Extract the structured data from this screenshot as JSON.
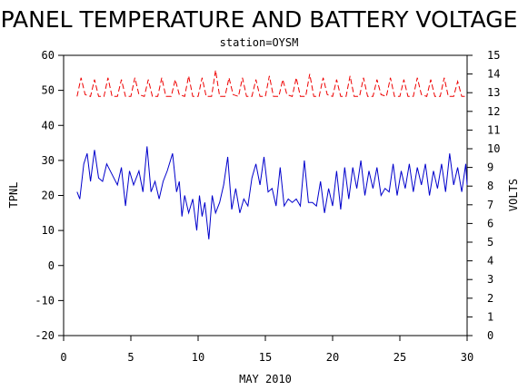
{
  "chart_data": {
    "type": "line",
    "title": "PANEL TEMPERATURE AND BATTERY VOLTAGE",
    "subtitle": "station=OYSM",
    "xlabel": "MAY 2010",
    "ylabel_left": "TPNL",
    "ylabel_right": "VOLTS",
    "xlim": [
      0,
      30
    ],
    "ylim_left": [
      -20,
      60
    ],
    "ylim_right": [
      0,
      15
    ],
    "x_ticks": [
      "0",
      "5",
      "10",
      "15",
      "20",
      "25",
      "30"
    ],
    "y_ticks_left": [
      "-20",
      "-10",
      "0",
      "10",
      "20",
      "30",
      "40",
      "50",
      "60"
    ],
    "y_ticks_right": [
      "0",
      "1",
      "2",
      "3",
      "4",
      "5",
      "6",
      "7",
      "8",
      "9",
      "10",
      "11",
      "12",
      "13",
      "14",
      "15"
    ],
    "grid": false,
    "series": [
      {
        "axis": "left",
        "color": "#0000cc",
        "dash": "solid",
        "x": [
          1.0,
          1.2,
          1.5,
          1.75,
          2.0,
          2.3,
          2.6,
          2.9,
          3.2,
          3.6,
          4.0,
          4.3,
          4.6,
          4.9,
          5.2,
          5.6,
          5.9,
          6.2,
          6.5,
          6.8,
          7.1,
          7.4,
          7.7,
          8.1,
          8.4,
          8.6,
          8.8,
          9.0,
          9.3,
          9.6,
          9.9,
          10.1,
          10.3,
          10.5,
          10.8,
          11.05,
          11.3,
          11.6,
          11.9,
          12.2,
          12.5,
          12.8,
          13.1,
          13.4,
          13.7,
          14.0,
          14.3,
          14.6,
          14.9,
          15.2,
          15.5,
          15.8,
          16.1,
          16.4,
          16.7,
          17.0,
          17.3,
          17.6,
          17.9,
          18.2,
          18.5,
          18.8,
          19.1,
          19.4,
          19.7,
          20.0,
          20.3,
          20.6,
          20.9,
          21.2,
          21.5,
          21.8,
          22.1,
          22.4,
          22.7,
          23.0,
          23.3,
          23.6,
          23.9,
          24.2,
          24.5,
          24.8,
          25.1,
          25.4,
          25.7,
          26.0,
          26.3,
          26.6,
          26.9,
          27.2,
          27.5,
          27.8,
          28.1,
          28.4,
          28.7,
          29.0,
          29.3,
          29.6,
          29.9,
          30.0
        ],
        "y": [
          21,
          19,
          29,
          32,
          24,
          33,
          25,
          24,
          29,
          26,
          23,
          28,
          17,
          27,
          23,
          27,
          21,
          34,
          21,
          24,
          19,
          24,
          27,
          32,
          21,
          24,
          14,
          20,
          15,
          19,
          10,
          20,
          14,
          18,
          7.5,
          20,
          15,
          18,
          23,
          31,
          16,
          22,
          15,
          19,
          17,
          25,
          29,
          23,
          31,
          21,
          22,
          17,
          28,
          17,
          19,
          18,
          19,
          17,
          30,
          18,
          18,
          17,
          24,
          15,
          22,
          17,
          27,
          16,
          28,
          19,
          28,
          22,
          30,
          20,
          27,
          22,
          28,
          20,
          22,
          21,
          29,
          20,
          27,
          22,
          29,
          21,
          28,
          23,
          29,
          20,
          27,
          22,
          29,
          21,
          32,
          23,
          28,
          21,
          29,
          23
        ],
        "name": ""
      },
      {
        "axis": "right",
        "color": "#ee0000",
        "dash": "dashed",
        "x": [
          1.0,
          1.3,
          1.6,
          2.0,
          2.3,
          2.6,
          3.0,
          3.3,
          3.6,
          4.0,
          4.3,
          4.6,
          5.0,
          5.3,
          5.6,
          6.0,
          6.3,
          6.6,
          7.0,
          7.3,
          7.6,
          8.0,
          8.3,
          8.6,
          9.0,
          9.3,
          9.6,
          10.0,
          10.3,
          10.6,
          11.0,
          11.3,
          11.6,
          12.0,
          12.3,
          12.6,
          13.0,
          13.3,
          13.6,
          14.0,
          14.3,
          14.6,
          15.0,
          15.3,
          15.6,
          16.0,
          16.3,
          16.6,
          17.0,
          17.3,
          17.6,
          18.0,
          18.3,
          18.6,
          19.0,
          19.3,
          19.6,
          20.0,
          20.3,
          20.6,
          21.0,
          21.3,
          21.6,
          22.0,
          22.3,
          22.6,
          23.0,
          23.3,
          23.6,
          24.0,
          24.3,
          24.6,
          25.0,
          25.3,
          25.6,
          26.0,
          26.3,
          26.6,
          27.0,
          27.3,
          27.6,
          28.0,
          28.3,
          28.6,
          29.0,
          29.3,
          29.6,
          30.0
        ],
        "y": [
          12.8,
          13.8,
          12.9,
          12.8,
          13.7,
          12.8,
          12.8,
          13.8,
          12.8,
          12.8,
          13.7,
          12.8,
          12.8,
          13.8,
          12.9,
          12.8,
          13.7,
          12.8,
          12.8,
          13.8,
          12.8,
          12.8,
          13.7,
          12.9,
          12.8,
          13.9,
          12.8,
          12.8,
          13.8,
          12.8,
          12.8,
          14.2,
          12.8,
          12.8,
          13.8,
          12.9,
          12.8,
          13.8,
          12.8,
          12.8,
          13.7,
          12.8,
          12.8,
          13.9,
          12.8,
          12.8,
          13.7,
          12.9,
          12.8,
          13.8,
          12.8,
          12.8,
          14.0,
          12.8,
          12.8,
          13.8,
          12.9,
          12.8,
          13.7,
          12.8,
          12.8,
          13.9,
          12.8,
          12.8,
          13.8,
          12.8,
          12.8,
          13.7,
          12.9,
          12.8,
          13.8,
          12.8,
          12.8,
          13.7,
          12.8,
          12.8,
          13.8,
          12.9,
          12.8,
          13.7,
          12.8,
          12.8,
          13.8,
          12.8,
          12.8,
          13.6,
          12.8,
          12.8
        ],
        "name": ""
      }
    ]
  }
}
